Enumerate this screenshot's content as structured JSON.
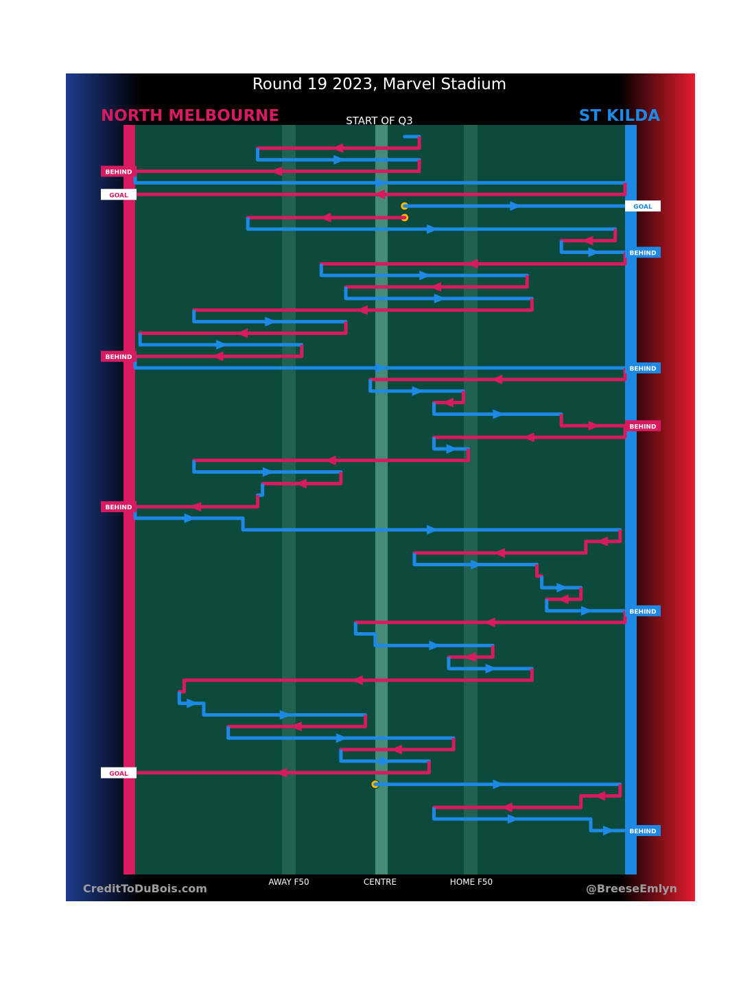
{
  "title": "Round 19 2023, Marvel Stadium",
  "teams": {
    "home": {
      "name": "NORTH MELBOURNE",
      "color": "#d81b60"
    },
    "away": {
      "name": "ST KILDA",
      "color": "#1e88e5"
    }
  },
  "period_label": "START OF Q3",
  "field_color": "#0b4a3c",
  "credits": {
    "left": "CreditToDuBois.com",
    "right": "@BreeseEmlyn"
  },
  "zone_labels": {
    "away_f50": "AWAY F50",
    "centre": "CENTRE",
    "home_f50": "HOME F50"
  },
  "chart_data": {
    "type": "line",
    "title": "Round 19 2023, Marvel Stadium",
    "xlabel": "",
    "ylabel": "",
    "x_ticks": [
      "AWAY F50",
      "CENTRE",
      "HOME F50"
    ],
    "grid": false,
    "legend": "team names top-left (NORTH MELBOURNE) and top-right (ST KILDA)",
    "note_colors": {
      "NORTH MELBOURNE": "#d81b60",
      "ST KILDA": "#1e88e5",
      "stoppage": "#f6b800"
    },
    "possession_chain": [
      {
        "team": "STK",
        "from": 0.55,
        "to": 0.58
      },
      {
        "team": "NM",
        "from": 0.58,
        "to": 0.25
      },
      {
        "team": "STK",
        "from": 0.25,
        "to": 0.58
      },
      {
        "team": "NM",
        "from": 0.58,
        "to": 0.0,
        "result": "BEHIND"
      },
      {
        "team": "STK",
        "from": 0.0,
        "to": 1.0
      },
      {
        "team": "NM",
        "from": 1.0,
        "to": 0.0,
        "result": "GOAL"
      },
      {
        "team": "STK",
        "from": 0.55,
        "to": 1.0,
        "result": "GOAL"
      },
      {
        "team": "NM",
        "from": 0.55,
        "to": 0.23
      },
      {
        "team": "STK",
        "from": 0.23,
        "to": 0.98
      },
      {
        "team": "NM",
        "from": 0.98,
        "to": 0.87
      },
      {
        "team": "STK",
        "from": 0.87,
        "to": 1.0,
        "result": "BEHIND"
      },
      {
        "team": "NM",
        "from": 1.0,
        "to": 0.38
      },
      {
        "team": "STK",
        "from": 0.38,
        "to": 0.8
      },
      {
        "team": "NM",
        "from": 0.8,
        "to": 0.43
      },
      {
        "team": "STK",
        "from": 0.43,
        "to": 0.81
      },
      {
        "team": "NM",
        "from": 0.81,
        "to": 0.12
      },
      {
        "team": "STK",
        "from": 0.12,
        "to": 0.43
      },
      {
        "team": "NM",
        "from": 0.43,
        "to": 0.01
      },
      {
        "team": "STK",
        "from": 0.01,
        "to": 0.34
      },
      {
        "team": "NM",
        "from": 0.34,
        "to": 0.0,
        "result": "BEHIND"
      },
      {
        "team": "STK",
        "from": 0.0,
        "to": 1.0,
        "result": "BEHIND"
      },
      {
        "team": "NM",
        "from": 1.0,
        "to": 0.48
      },
      {
        "team": "STK",
        "from": 0.48,
        "to": 0.67
      },
      {
        "team": "NM",
        "from": 0.67,
        "to": 0.61
      },
      {
        "team": "STK",
        "from": 0.61,
        "to": 0.87
      },
      {
        "team": "NM",
        "from": 0.87,
        "to": 1.0,
        "result": "BEHIND"
      },
      {
        "team": "NM",
        "from": 1.0,
        "to": 0.61
      },
      {
        "team": "STK",
        "from": 0.61,
        "to": 0.68
      },
      {
        "team": "NM",
        "from": 0.68,
        "to": 0.12
      },
      {
        "team": "STK",
        "from": 0.12,
        "to": 0.42
      },
      {
        "team": "NM",
        "from": 0.42,
        "to": 0.26
      },
      {
        "team": "STK",
        "from": 0.26,
        "to": 0.25
      },
      {
        "team": "NM",
        "from": 0.25,
        "to": 0.0,
        "result": "BEHIND"
      },
      {
        "team": "STK",
        "from": 0.0,
        "to": 0.22
      },
      {
        "team": "STK",
        "from": 0.22,
        "to": 0.99
      },
      {
        "team": "NM",
        "from": 0.99,
        "to": 0.92
      },
      {
        "team": "NM",
        "from": 0.92,
        "to": 0.57
      },
      {
        "team": "STK",
        "from": 0.57,
        "to": 0.82
      },
      {
        "team": "NM",
        "from": 0.82,
        "to": 0.83
      },
      {
        "team": "STK",
        "from": 0.83,
        "to": 0.91
      },
      {
        "team": "NM",
        "from": 0.91,
        "to": 0.84
      },
      {
        "team": "STK",
        "from": 0.84,
        "to": 1.0,
        "result": "BEHIND"
      },
      {
        "team": "NM",
        "from": 1.0,
        "to": 0.45
      },
      {
        "team": "STK",
        "from": 0.45,
        "to": 0.49
      },
      {
        "team": "STK",
        "from": 0.49,
        "to": 0.73
      },
      {
        "team": "NM",
        "from": 0.73,
        "to": 0.64
      },
      {
        "team": "STK",
        "from": 0.64,
        "to": 0.81
      },
      {
        "team": "NM",
        "from": 0.81,
        "to": 0.1
      },
      {
        "team": "NM",
        "from": 0.1,
        "to": 0.09
      },
      {
        "team": "STK",
        "from": 0.09,
        "to": 0.14
      },
      {
        "team": "STK",
        "from": 0.14,
        "to": 0.47
      },
      {
        "team": "NM",
        "from": 0.47,
        "to": 0.19
      },
      {
        "team": "STK",
        "from": 0.19,
        "to": 0.65
      },
      {
        "team": "NM",
        "from": 0.65,
        "to": 0.42
      },
      {
        "team": "STK",
        "from": 0.42,
        "to": 0.6
      },
      {
        "team": "NM",
        "from": 0.6,
        "to": 0.0,
        "result": "GOAL"
      },
      {
        "team": "STK",
        "from": 0.49,
        "to": 0.99
      },
      {
        "team": "NM",
        "from": 0.99,
        "to": 0.91
      },
      {
        "team": "NM",
        "from": 0.91,
        "to": 0.61
      },
      {
        "team": "STK",
        "from": 0.61,
        "to": 0.93
      },
      {
        "team": "STK",
        "from": 0.93,
        "to": 1.0,
        "result": "BEHIND"
      }
    ]
  }
}
